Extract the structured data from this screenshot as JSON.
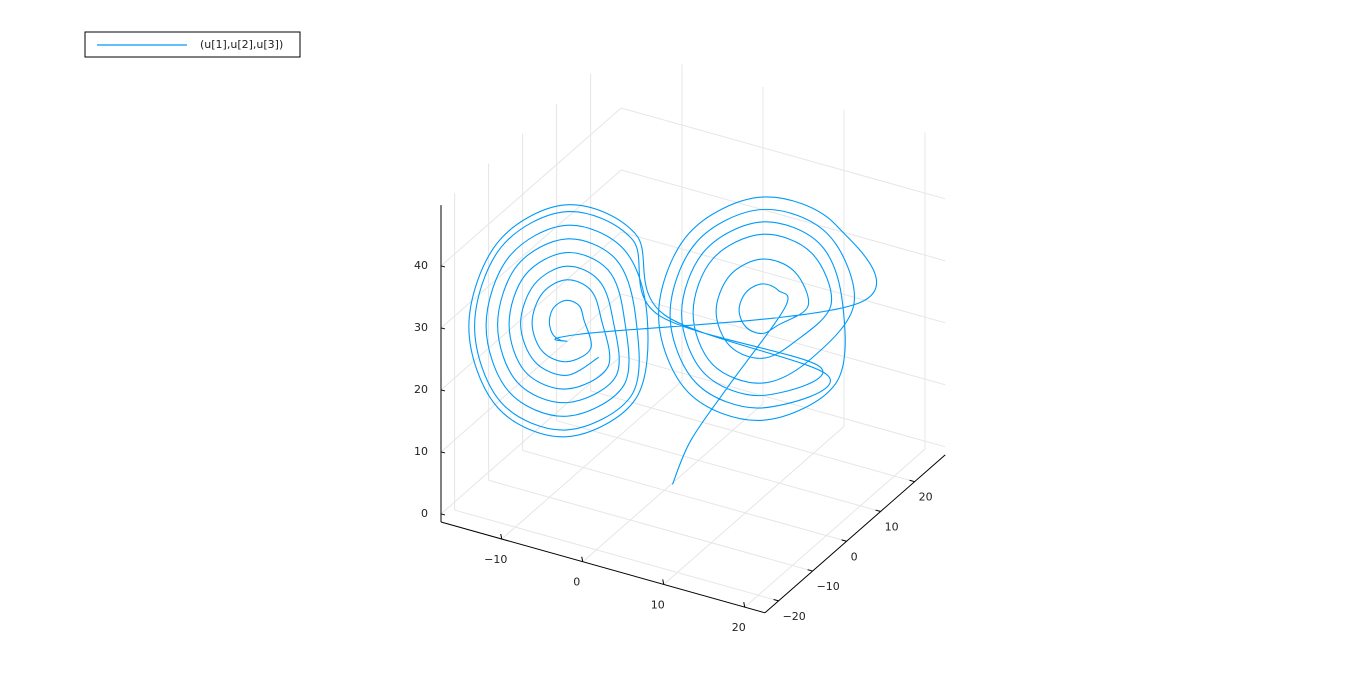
{
  "chart_data": {
    "type": "line3d",
    "legend_position": "top-left",
    "grid": true,
    "xlim": [
      -17.5,
      22.5
    ],
    "ylim": [
      -24,
      29
    ],
    "zlim": [
      -1.3,
      49.8
    ],
    "xticks": [
      {
        "value": -10,
        "label": "−10"
      },
      0,
      10,
      20
    ],
    "yticks": [
      {
        "value": -20,
        "label": "−20"
      },
      {
        "value": -10,
        "label": "−10"
      },
      0,
      10,
      20
    ],
    "zticks": [
      0,
      10,
      20,
      30,
      40
    ],
    "series": [
      {
        "name": "(u[1],u[2],u[3])",
        "color": "#009af9",
        "x": [
          1,
          2,
          5,
          10.5,
          9.9,
          8.5,
          7.1,
          6.5,
          7.1,
          8.5,
          9.9,
          12.5,
          11.3,
          8.5,
          5.7,
          4.5,
          5.7,
          8.5,
          11.3,
          14.5,
          12.8,
          8.5,
          4.2,
          2.5,
          4.2,
          8.5,
          12.8,
          16.5,
          14.2,
          8.5,
          2.8,
          0.5,
          2.8,
          8.5,
          14.2,
          0,
          -2.5,
          -8.5,
          -14.5,
          -17,
          -14.5,
          -8.5,
          -2.5,
          -1.5,
          -3.5,
          -8.5,
          -13.5,
          -15.5,
          -13.5,
          -8.5,
          -3.5,
          -3.5,
          -4.9,
          -8.5,
          -12.1,
          -13.5,
          -12.1,
          -8.5,
          -4.9,
          -5.5,
          -6.4,
          -8.5,
          -10.6,
          -11.5,
          -10.6,
          -8.5,
          -6.4,
          -7,
          -7.4,
          -8.5,
          -9.6,
          -10,
          -9.6,
          -8.5,
          -7.4,
          17,
          14.9,
          8.5,
          2.1,
          -0.5,
          2.1,
          8.5,
          14.9,
          15.5,
          13.5,
          8.5,
          3.5,
          1.5,
          3.5,
          8.5,
          13.5,
          -0.5,
          -2.8,
          -8.5,
          -14.2,
          -16.5,
          -14.2,
          -8.5,
          -2.8,
          -2.5,
          -4.2,
          -8.5,
          -12.8,
          -14.5,
          -12.8,
          -8.5,
          -4.2,
          -4.5,
          -5.7,
          -8.5,
          -11.3,
          -12.5,
          -11.3,
          -8.5,
          -5.7
        ],
        "y": [
          0,
          3,
          7,
          10.5,
          9.9,
          8.5,
          7.1,
          6.5,
          7.1,
          8.5,
          9.9,
          12.5,
          11.3,
          8.5,
          5.7,
          4.5,
          5.7,
          8.5,
          11.3,
          14.5,
          12.8,
          8.5,
          4.2,
          2.5,
          4.2,
          8.5,
          12.8,
          16.5,
          14.2,
          8.5,
          2.8,
          0.5,
          2.8,
          8.5,
          14.2,
          0,
          -2.5,
          -8.5,
          -14.5,
          -17,
          -14.5,
          -8.5,
          -2.5,
          -1.5,
          -3.5,
          -8.5,
          -13.5,
          -15.5,
          -13.5,
          -8.5,
          -3.5,
          -3.5,
          -4.9,
          -8.5,
          -12.1,
          -13.5,
          -12.1,
          -8.5,
          -4.9,
          -5.5,
          -6.4,
          -8.5,
          -10.6,
          -11.5,
          -10.6,
          -8.5,
          -6.4,
          -7,
          -7.4,
          -8.5,
          -9.6,
          -10,
          -9.6,
          -8.5,
          -7.4,
          17,
          14.9,
          8.5,
          2.1,
          -0.5,
          2.1,
          8.5,
          14.9,
          15.5,
          13.5,
          8.5,
          3.5,
          1.5,
          3.5,
          8.5,
          13.5,
          -0.5,
          -2.8,
          -8.5,
          -14.2,
          -16.5,
          -14.2,
          -8.5,
          -2.8,
          -2.5,
          -4.2,
          -8.5,
          -12.8,
          -14.5,
          -12.8,
          -8.5,
          -4.2,
          -4.5,
          -5.7,
          -8.5,
          -11.3,
          -12.5,
          -11.3,
          -8.5,
          -5.7
        ],
        "z": [
          0,
          6,
          14,
          27,
          29.8,
          31,
          29.8,
          27,
          24.2,
          23,
          24.2,
          27,
          32.7,
          35,
          32.7,
          27,
          21.3,
          19,
          21.3,
          27,
          35.5,
          39,
          35.5,
          27,
          18.5,
          15,
          18.5,
          27,
          38.4,
          43,
          38.4,
          27,
          15.6,
          11,
          15.6,
          27,
          40.3,
          45.7,
          40.3,
          27,
          13.7,
          8.3,
          13.7,
          27,
          37.9,
          42.4,
          37.9,
          27,
          16.1,
          11.6,
          16.1,
          27,
          34.8,
          38,
          34.8,
          27,
          19.2,
          16,
          19.2,
          27,
          31.7,
          33.6,
          31.7,
          27,
          22.3,
          20.4,
          22.3,
          27,
          29.3,
          30.3,
          29.3,
          27,
          24.7,
          23.7,
          24.7,
          27,
          39.8,
          45,
          39.8,
          27,
          14.2,
          9,
          14.2,
          27,
          36.9,
          41,
          36.9,
          27,
          17.1,
          13,
          17.1,
          27,
          39.5,
          44.6,
          39.5,
          27,
          14.5,
          9.4,
          14.5,
          27,
          36.4,
          40.2,
          36.4,
          27,
          17.6,
          13.8,
          17.6,
          27,
          33.2,
          35.8,
          33.2,
          27,
          20.8,
          18.2,
          20.8
        ]
      }
    ]
  }
}
